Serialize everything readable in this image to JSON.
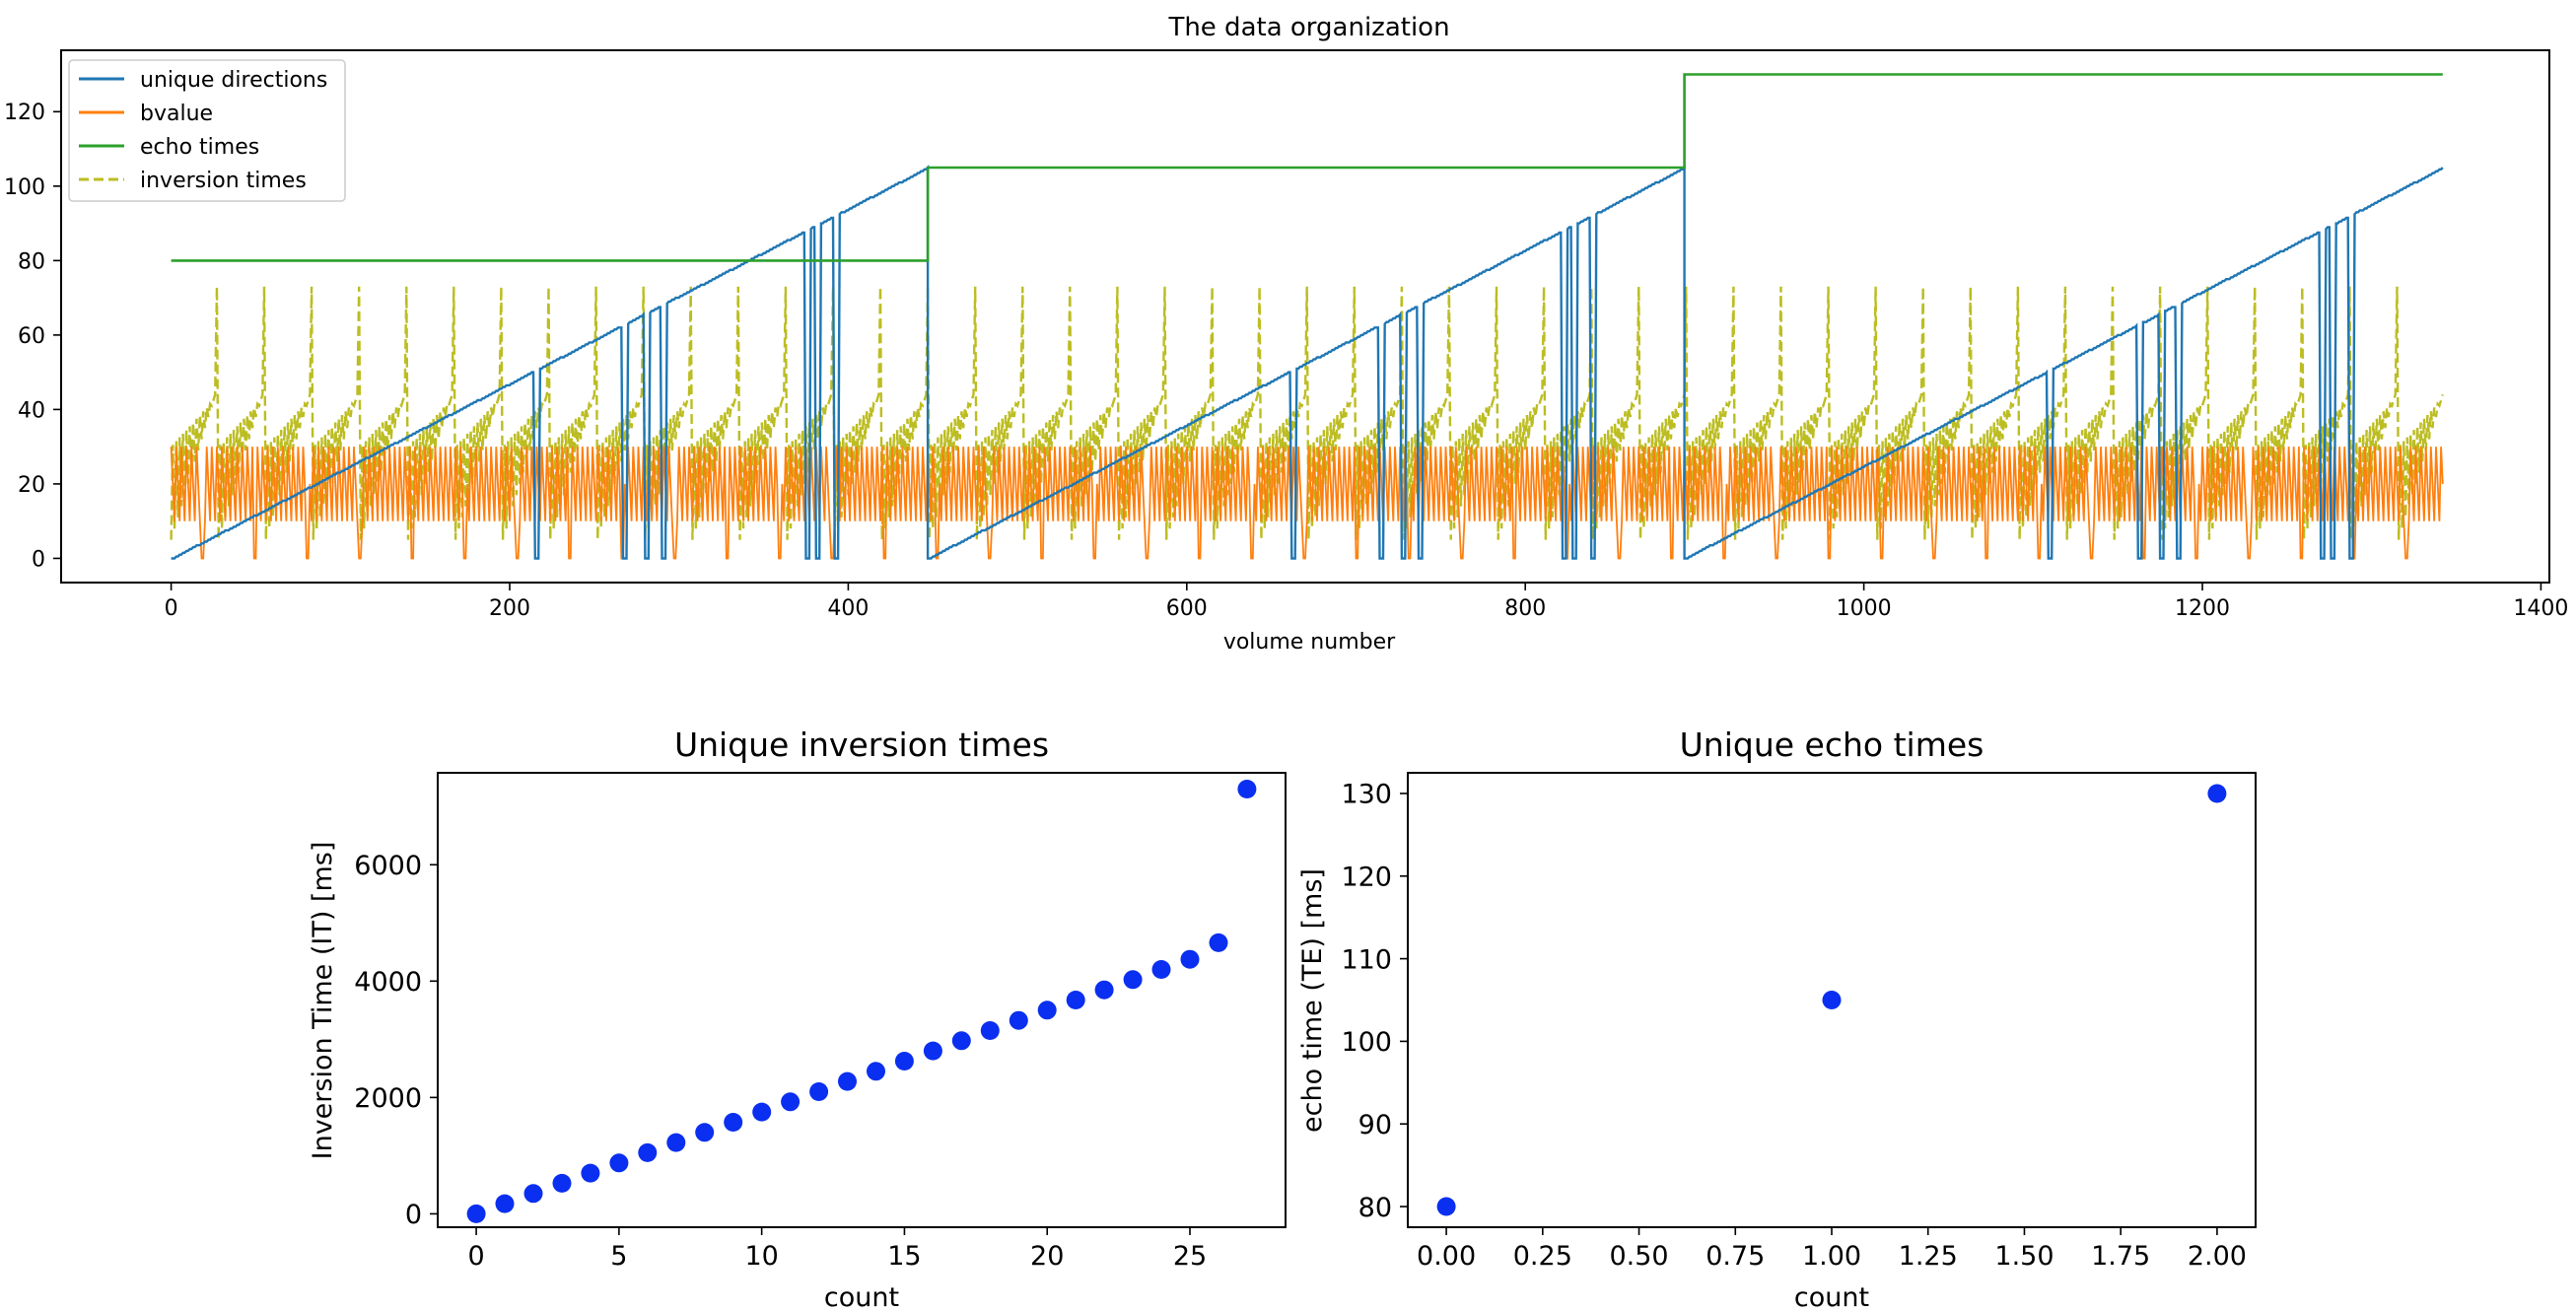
{
  "chart_data": [
    {
      "type": "line",
      "title": "The data organization",
      "xlabel": "volume number",
      "ylabel": "",
      "xlim": [
        -65,
        1405
      ],
      "ylim": [
        -6.5,
        136.5
      ],
      "xticks": [
        0,
        200,
        400,
        600,
        800,
        1000,
        1200,
        1400
      ],
      "yticks": [
        0,
        20,
        40,
        60,
        80,
        100,
        120
      ],
      "legend_position": "upper-left",
      "series": [
        {
          "name": "unique directions",
          "color": "#1f77b4",
          "style": "solid",
          "description": "sawtooth ramp 0 to 105 repeating every ~447 volumes, with sharp dips to 0 at b0 volumes",
          "blocks": [
            [
              0,
              447
            ],
            [
              447,
              894
            ],
            [
              894,
              1342
            ]
          ],
          "max": 105
        },
        {
          "name": "bvalue",
          "color": "#ff7f0e",
          "style": "solid",
          "description": "oscillates between about 10 and 30, periodic drops to 0",
          "range": [
            0,
            30
          ]
        },
        {
          "name": "echo times",
          "color": "#2ca02c",
          "style": "solid",
          "segments": [
            {
              "x": [
                0,
                447
              ],
              "y": 80
            },
            {
              "x": [
                447,
                894
              ],
              "y": 105
            },
            {
              "x": [
                894,
                1342
              ],
              "y": 130
            }
          ]
        },
        {
          "name": "inversion times",
          "color": "#bcbd22",
          "style": "dashed",
          "description": "dense dashed oscillation between 0 and ~45 with periodic spikes to ~73, period ~28 volumes",
          "range": [
            0,
            73
          ]
        }
      ]
    },
    {
      "type": "scatter",
      "title": "Unique inversion times",
      "xlabel": "count",
      "ylabel": "Inversion Time (IT) [ms]",
      "xlim": [
        -1.35,
        28.35
      ],
      "ylim": [
        -230,
        7580
      ],
      "xticks": [
        0,
        5,
        10,
        15,
        20,
        25
      ],
      "yticks": [
        0,
        2000,
        4000,
        6000
      ],
      "color": "#0a2ff0",
      "x": [
        0,
        1,
        2,
        3,
        4,
        5,
        6,
        7,
        8,
        9,
        10,
        11,
        12,
        13,
        14,
        15,
        16,
        17,
        18,
        19,
        20,
        21,
        22,
        23,
        24,
        25,
        26,
        27
      ],
      "y": [
        0,
        175,
        350,
        525,
        700,
        875,
        1050,
        1225,
        1400,
        1575,
        1750,
        1925,
        2100,
        2275,
        2450,
        2625,
        2800,
        2975,
        3150,
        3325,
        3500,
        3675,
        3850,
        4025,
        4200,
        4375,
        4660,
        7300
      ]
    },
    {
      "type": "scatter",
      "title": "Unique echo times",
      "xlabel": "count",
      "ylabel": "echo time (TE) [ms]",
      "xlim": [
        -0.1,
        2.1
      ],
      "ylim": [
        77.5,
        132.5
      ],
      "xticks": [
        0,
        0.25,
        0.5,
        0.75,
        1,
        1.25,
        1.5,
        1.75,
        2
      ],
      "xtick_labels": [
        "0.00",
        "0.25",
        "0.50",
        "0.75",
        "1.00",
        "1.25",
        "1.50",
        "1.75",
        "2.00"
      ],
      "yticks": [
        80,
        90,
        100,
        110,
        120,
        130
      ],
      "color": "#0a2ff0",
      "x": [
        0,
        1,
        2
      ],
      "y": [
        80,
        105,
        130
      ]
    }
  ]
}
